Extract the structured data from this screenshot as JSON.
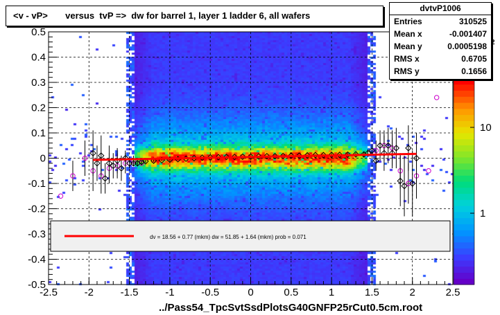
{
  "title": "<v - vP>       versus  tvP =>  dw for barrel 1, layer 1 ladder 6, all wafers",
  "x_axis_title": "../Pass54_TpcSvtSsdPlotsG40GNFP25rCut0.5cm.root",
  "stats": {
    "name": "dvtvP1006",
    "rows": [
      {
        "label": "Entries",
        "value": "310525"
      },
      {
        "label": "Mean x",
        "value": "-0.001407"
      },
      {
        "label": "Mean y",
        "value": "0.0005198"
      },
      {
        "label": "RMS x",
        "value": "0.6705"
      },
      {
        "label": "RMS y",
        "value": "0.1656"
      }
    ]
  },
  "palette_exponent": "2",
  "legend": {
    "text": "dv =    18.56 +   0.77 (mkm) dw =    51.85 +   1.64 (mkm) prob = 0.071",
    "line_color": "#ff0000"
  },
  "colors": {
    "fit_line": "#ff0000",
    "markers_open": "#000000",
    "markers_alt": "#cc00cc"
  },
  "chart_data": {
    "type": "heatmap",
    "xlim": [
      -2.5,
      2.5
    ],
    "ylim": [
      -0.5,
      0.5
    ],
    "x_ticks": [
      "-2.5",
      "-2",
      "-1.5",
      "-1",
      "-0.5",
      "0",
      "0.5",
      "1",
      "1.5",
      "2",
      "2.5"
    ],
    "y_ticks": [
      "-0.5",
      "-0.4",
      "-0.3",
      "-0.2",
      "-0.1",
      "0",
      "0.1",
      "0.2",
      "0.3",
      "0.4",
      "0.5"
    ],
    "colorbar_ticks": [
      "1",
      "10"
    ],
    "grid": true,
    "log_z": true,
    "fit_line": {
      "x": [
        -1.95,
        2.05
      ],
      "y": [
        -0.007,
        0.017
      ]
    },
    "profile_black": {
      "x": [
        -1.95,
        -1.9,
        -1.85,
        -1.8,
        -1.75,
        -1.7,
        -1.65,
        -1.6,
        -1.55,
        -1.5,
        -1.45,
        -1.4,
        -1.35,
        -1.3,
        -1.2,
        -1.1,
        -1.0,
        -0.9,
        -0.8,
        -0.7,
        -0.6,
        -0.5,
        -0.4,
        -0.3,
        -0.2,
        -0.1,
        0.0,
        0.1,
        0.2,
        0.3,
        0.4,
        0.5,
        0.6,
        0.7,
        0.8,
        0.9,
        1.0,
        1.1,
        1.2,
        1.3,
        1.4,
        1.45,
        1.5,
        1.55,
        1.6,
        1.65,
        1.7,
        1.75,
        1.8,
        1.85,
        1.9,
        1.95,
        2.0,
        2.05
      ],
      "y": [
        0.02,
        -0.02,
        0.01,
        -0.08,
        -0.02,
        -0.03,
        -0.01,
        -0.04,
        0.0,
        -0.02,
        -0.02,
        -0.02,
        -0.015,
        -0.012,
        -0.01,
        -0.008,
        -0.006,
        -0.004,
        -0.002,
        0.0,
        0.002,
        0.003,
        0.004,
        0.005,
        0.005,
        0.006,
        0.006,
        0.007,
        0.008,
        0.008,
        0.009,
        0.01,
        0.01,
        0.011,
        0.012,
        0.012,
        0.013,
        0.013,
        0.014,
        0.015,
        0.015,
        0.02,
        0.03,
        -0.01,
        0.05,
        0.02,
        0.05,
        0.02,
        0.04,
        -0.09,
        -0.11,
        0.04,
        -0.1,
        0.0
      ],
      "err": [
        0.09,
        0.07,
        0.08,
        0.06,
        0.07,
        0.05,
        0.05,
        0.05,
        0.03,
        0.02,
        0.01,
        0.01,
        0.008,
        0.006,
        0.004,
        0.003,
        0.003,
        0.002,
        0.002,
        0.002,
        0.002,
        0.002,
        0.002,
        0.002,
        0.002,
        0.002,
        0.002,
        0.002,
        0.002,
        0.002,
        0.002,
        0.002,
        0.002,
        0.002,
        0.003,
        0.003,
        0.003,
        0.004,
        0.005,
        0.006,
        0.01,
        0.015,
        0.02,
        0.04,
        0.06,
        0.07,
        0.07,
        0.06,
        0.08,
        0.1,
        0.12,
        0.09,
        0.13,
        0.1
      ]
    },
    "profile_magenta": {
      "x": [
        -2.35,
        -2.2,
        -2.05,
        -1.95,
        -1.85,
        -1.75,
        -1.65,
        -1.55,
        -1.45,
        -1.35,
        1.55,
        1.65,
        1.75,
        1.85,
        1.95,
        2.05,
        2.2,
        2.3
      ],
      "y": [
        -0.15,
        -0.07,
        0.0,
        -0.05,
        -0.07,
        -0.04,
        -0.03,
        -0.02,
        -0.01,
        -0.02,
        0.03,
        0.05,
        0.04,
        -0.05,
        -0.1,
        -0.07,
        -0.05,
        0.24
      ],
      "err": [
        0,
        0.06,
        0.07,
        0.08,
        0.07,
        0.06,
        0.05,
        0.04,
        0.02,
        0.01,
        0.04,
        0.06,
        0.07,
        0.07,
        0.08,
        0.09,
        0,
        0
      ]
    }
  }
}
